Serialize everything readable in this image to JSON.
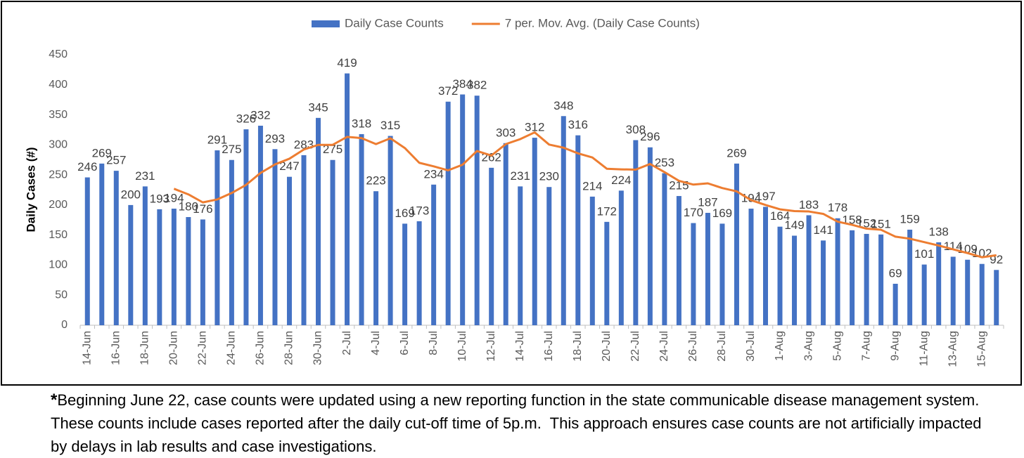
{
  "chart_data": {
    "type": "bar",
    "y_label": "Daily Cases (#)",
    "categories": [
      "14-Jun",
      null,
      "16-Jun",
      null,
      "18-Jun",
      null,
      "20-Jun",
      null,
      "22-Jun",
      null,
      "24-Jun",
      null,
      "26-Jun",
      null,
      "28-Jun",
      null,
      "30-Jun",
      null,
      "2-Jul",
      null,
      "4-Jul",
      null,
      "6-Jul",
      null,
      "8-Jul",
      null,
      "10-Jul",
      null,
      "12-Jul",
      null,
      "14-Jul",
      null,
      "16-Jul",
      null,
      "18-Jul",
      null,
      "20-Jul",
      null,
      "22-Jul",
      null,
      "24-Jul",
      null,
      "26-Jul",
      null,
      "28-Jul",
      null,
      "30-Jul",
      null,
      "1-Aug",
      null,
      "3-Aug",
      null,
      "5-Aug",
      null,
      "7-Aug",
      null,
      "9-Aug",
      null,
      "11-Aug",
      null,
      "13-Aug",
      null,
      "15-Aug",
      null
    ],
    "series": [
      {
        "name": "Daily Case Counts",
        "color": "#4472c4",
        "type": "bar",
        "values": [
          246,
          269,
          257,
          200,
          231,
          193,
          194,
          180,
          176,
          291,
          275,
          326,
          332,
          293,
          247,
          283,
          345,
          275,
          419,
          318,
          223,
          315,
          169,
          173,
          234,
          372,
          384,
          382,
          262,
          303,
          231,
          312,
          230,
          348,
          316,
          214,
          172,
          224,
          308,
          296,
          253,
          215,
          170,
          187,
          169,
          269,
          194,
          197,
          164,
          149,
          183,
          141,
          178,
          158,
          152,
          151,
          69,
          159,
          101,
          138,
          114,
          109,
          102,
          92
        ]
      },
      {
        "name": "7 per. Mov. Avg. (Daily Case Counts)",
        "color": "#ed7d31",
        "type": "line",
        "values": [
          null,
          null,
          null,
          null,
          null,
          null,
          227.1,
          217.7,
          204.4,
          209.3,
          220,
          233.6,
          253.4,
          267.6,
          277.1,
          292.4,
          300.1,
          300.1,
          313.4,
          311.4,
          301.4,
          311.1,
          294.9,
          270.3,
          264.4,
          257.7,
          267.1,
          289.9,
          282.3,
          301.4,
          309.7,
          320.9,
          300.6,
          295.4,
          286,
          279.1,
          260.4,
          259.4,
          258.9,
          268.3,
          254.7,
          240.3,
          234,
          236.1,
          228.3,
          222.7,
          208.1,
          200.1,
          192.9,
          189.9,
          189.3,
          185.3,
          172.3,
          167.1,
          160.7,
          158.9,
          147.4,
          144,
          138.3,
          132.6,
          126.3,
          120.1,
          113.1,
          116.4
        ]
      }
    ],
    "ylim": [
      0,
      450
    ],
    "yticks": [
      0,
      50,
      100,
      150,
      200,
      250,
      300,
      350,
      400,
      450
    ],
    "grid": false,
    "legend": "top"
  },
  "footnote_marker": "*",
  "footnote": "Beginning June 22, case counts were updated using a new reporting function in the state communicable disease management system.  These counts include cases reported after the daily cut-off time of 5p.m.  This approach ensures case counts are not artificially impacted by delays in lab results and case investigations."
}
